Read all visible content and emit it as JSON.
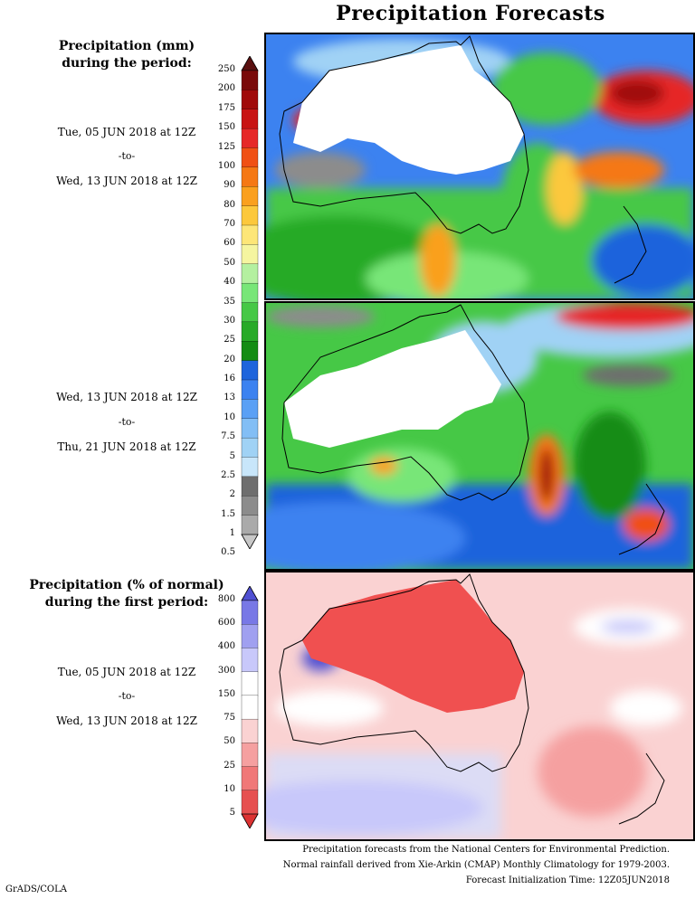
{
  "title": "Precipitation Forecasts",
  "legend_top": {
    "heading": [
      "Precipitation (mm)",
      "during the period:"
    ],
    "ticks": [
      "250",
      "200",
      "175",
      "150",
      "125",
      "100",
      "90",
      "80",
      "70",
      "60",
      "50",
      "40",
      "35",
      "30",
      "25",
      "20",
      "16",
      "13",
      "10",
      "7.5",
      "5",
      "2.5",
      "2",
      "1.5",
      "1",
      "0.5"
    ],
    "colors": [
      "#5a1010",
      "#7a0a0a",
      "#a00a0a",
      "#c81414",
      "#e62828",
      "#f05014",
      "#f57814",
      "#faa01e",
      "#fcc83c",
      "#fde678",
      "#f5f5a0",
      "#b4f0a0",
      "#78e678",
      "#46c846",
      "#28aa28",
      "#148c14",
      "#1e64dc",
      "#3c82f0",
      "#5aa0f5",
      "#82bef5",
      "#a0d2f5",
      "#c8e6fa",
      "#6e6e6e",
      "#8c8c8c",
      "#aaaaaa",
      "#c8c8c8"
    ]
  },
  "period1": {
    "from": "Tue, 05 JUN 2018 at 12Z",
    "sep": "-to-",
    "to": "Wed, 13 JUN 2018 at 12Z"
  },
  "period2": {
    "from": "Wed, 13 JUN 2018 at 12Z",
    "sep": "-to-",
    "to": "Thu, 21 JUN 2018 at 12Z"
  },
  "legend_bottom": {
    "heading": [
      "Precipitation (% of normal)",
      "during the first period:"
    ],
    "ticks": [
      "800",
      "600",
      "400",
      "300",
      "150",
      "75",
      "50",
      "25",
      "10",
      "5"
    ],
    "colors": [
      "#5050d2",
      "#7878e6",
      "#a0a0f0",
      "#c8c8fa",
      "#ffffff",
      "#ffffff",
      "#fad2d2",
      "#f5a0a0",
      "#f07878",
      "#e65050",
      "#dc3232"
    ]
  },
  "period3": {
    "from": "Tue, 05 JUN 2018 at 12Z",
    "sep": "-to-",
    "to": "Wed, 13 JUN 2018 at 12Z"
  },
  "footer": [
    "Precipitation forecasts from the National Centers for Environmental Prediction.",
    "Normal rainfall derived from Xie-Arkin (CMAP) Monthly Climatology for 1979-2003.",
    "Forecast Initialization Time: 12Z05JUN2018"
  ],
  "credit": "GrADS/COLA"
}
